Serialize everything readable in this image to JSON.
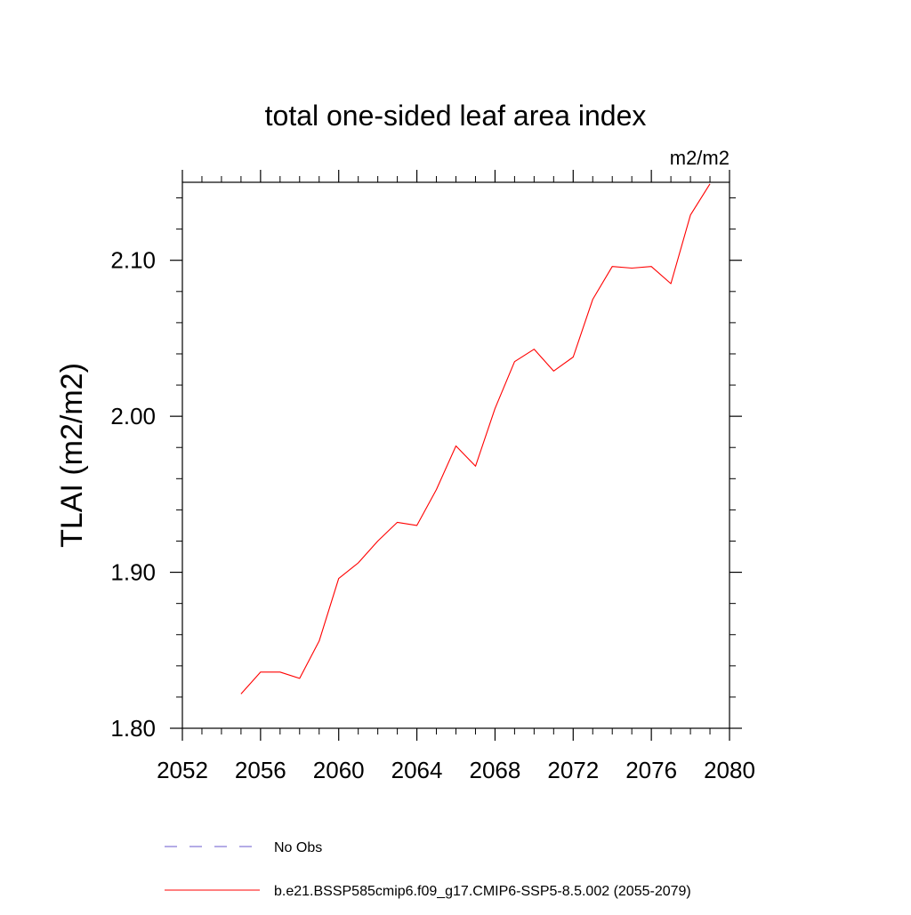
{
  "chart_data": {
    "type": "line",
    "title": "total one-sided leaf area index",
    "units": "m2/m2",
    "ylabel": "TLAI  (m2/m2)",
    "xlabel": "",
    "xlim": [
      2052,
      2080
    ],
    "ylim": [
      1.8,
      2.15
    ],
    "x_ticks": [
      2052,
      2056,
      2060,
      2064,
      2068,
      2072,
      2076,
      2080
    ],
    "y_ticks": [
      1.8,
      1.9,
      2.0,
      2.1
    ],
    "x_tick_labels": [
      "2052",
      "2056",
      "2060",
      "2064",
      "2068",
      "2072",
      "2076",
      "2080"
    ],
    "y_tick_labels": [
      "1.80",
      "1.90",
      "2.00",
      "2.10"
    ],
    "grid": false,
    "legend_position": "bottom",
    "series": [
      {
        "name": "b.e21.BSSP585cmip6.f09_g17.CMIP6-SSP5-8.5.002 (2055-2079)",
        "color": "#ff0000",
        "line_style": "solid",
        "x": [
          2055,
          2056,
          2057,
          2058,
          2059,
          2060,
          2061,
          2062,
          2063,
          2064,
          2065,
          2066,
          2067,
          2068,
          2069,
          2070,
          2071,
          2072,
          2073,
          2074,
          2075,
          2076,
          2077,
          2078,
          2079
        ],
        "y": [
          1.822,
          1.836,
          1.836,
          1.832,
          1.856,
          1.896,
          1.906,
          1.92,
          1.932,
          1.93,
          1.953,
          1.981,
          1.968,
          2.005,
          2.035,
          2.043,
          2.029,
          2.038,
          2.075,
          2.096,
          2.095,
          2.096,
          2.085,
          2.129,
          2.149
        ]
      }
    ],
    "legend": [
      {
        "label": "No Obs",
        "color": "#6a5acd",
        "line_style": "dashed"
      },
      {
        "label": "b.e21.BSSP585cmip6.f09_g17.CMIP6-SSP5-8.5.002 (2055-2079)",
        "color": "#ff0000",
        "line_style": "solid"
      }
    ]
  }
}
